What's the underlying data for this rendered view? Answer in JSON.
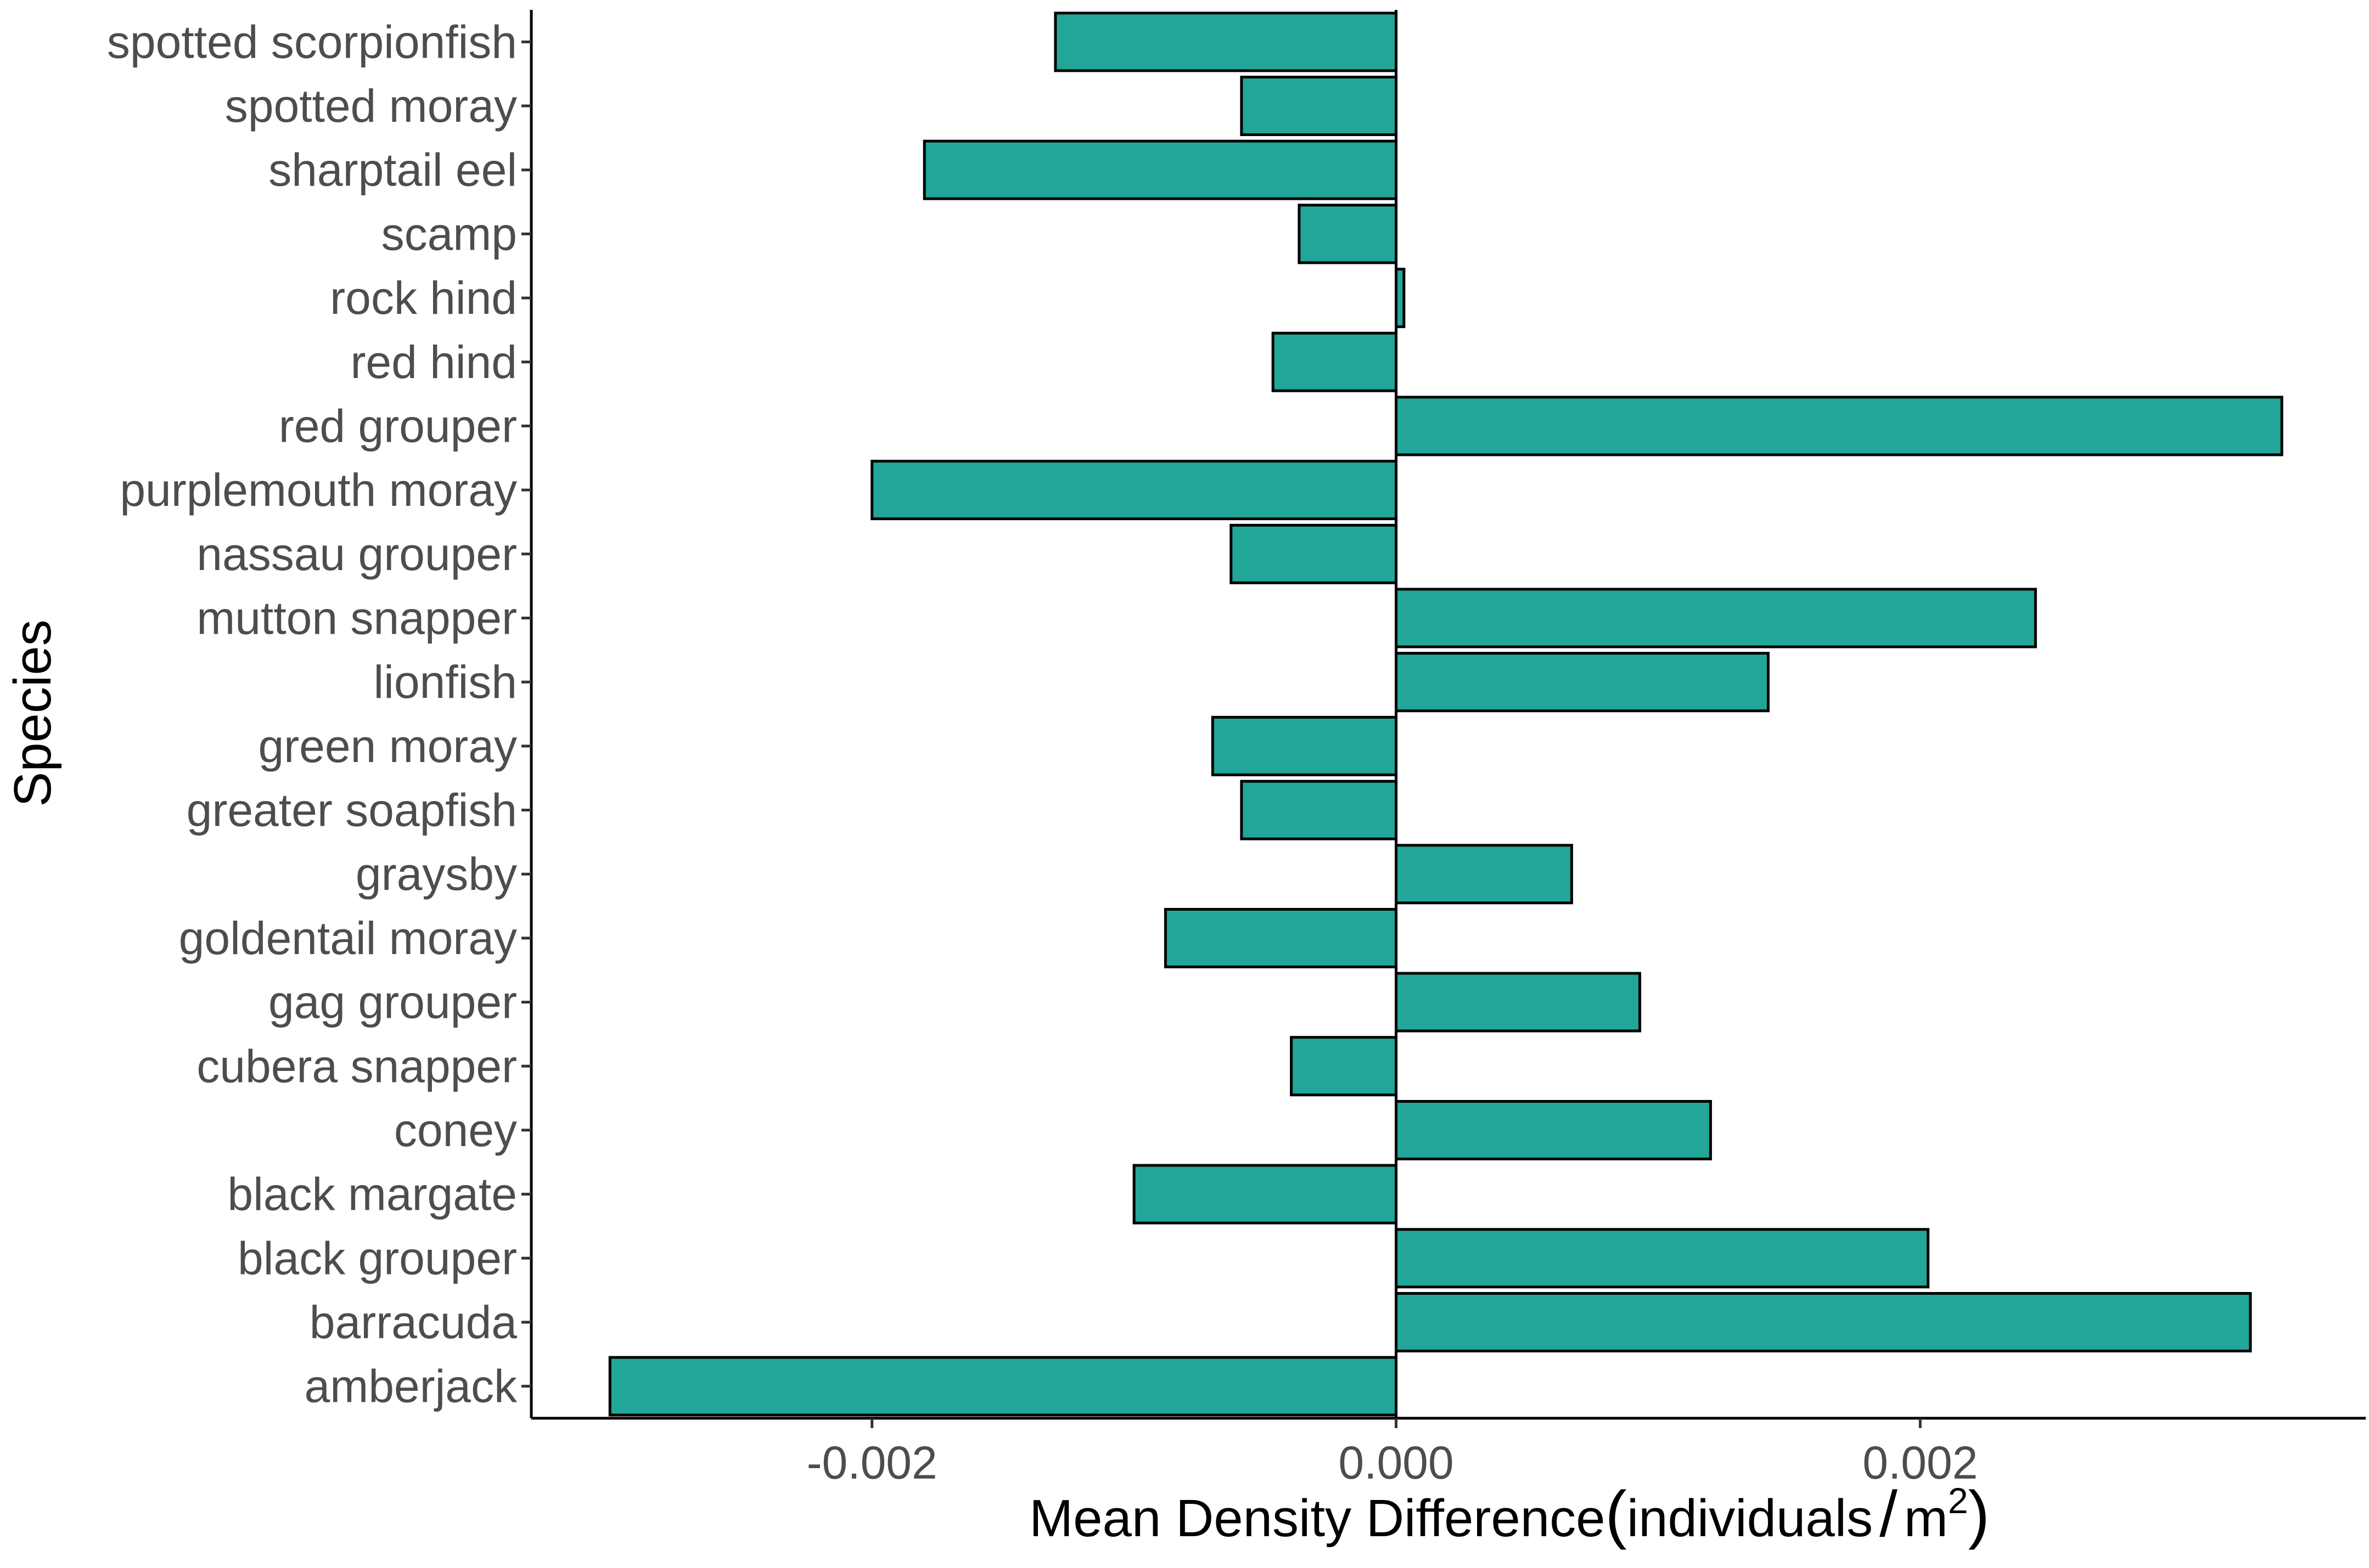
{
  "chart_data": {
    "type": "bar",
    "orientation": "horizontal",
    "categories": [
      "spotted scorpionfish",
      "spotted moray",
      "sharptail eel",
      "scamp",
      "rock hind",
      "red hind",
      "red grouper",
      "purplemouth moray",
      "nassau grouper",
      "mutton snapper",
      "lionfish",
      "green moray",
      "greater soapfish",
      "graysby",
      "goldentail moray",
      "gag grouper",
      "cubera snapper",
      "coney",
      "black margate",
      "black grouper",
      "barracuda",
      "amberjack"
    ],
    "values": [
      -0.0013,
      -0.00059,
      -0.0018,
      -0.00037,
      3e-05,
      -0.00047,
      0.00338,
      -0.002,
      -0.00063,
      0.00244,
      0.00142,
      -0.0007,
      -0.00059,
      0.00067,
      -0.00088,
      0.00093,
      -0.0004,
      0.0012,
      -0.001,
      0.00203,
      0.00326,
      -0.003
    ],
    "xlim": [
      -0.0033,
      0.0037
    ],
    "xticks": [
      -0.002,
      0.0,
      0.002
    ],
    "xtick_labels": [
      "-0.002",
      "0.000",
      "0.002"
    ],
    "xlabel_main": "Mean Density Difference",
    "xlabel_paren_open": "(",
    "xlabel_units": "individuals",
    "xlabel_slash": "/",
    "xlabel_m": "m",
    "xlabel_sup": "2",
    "xlabel_paren_close": ")",
    "ylabel": "Species",
    "bar_color": "#21A698",
    "bar_edge_color": "#000000",
    "grid": false
  }
}
